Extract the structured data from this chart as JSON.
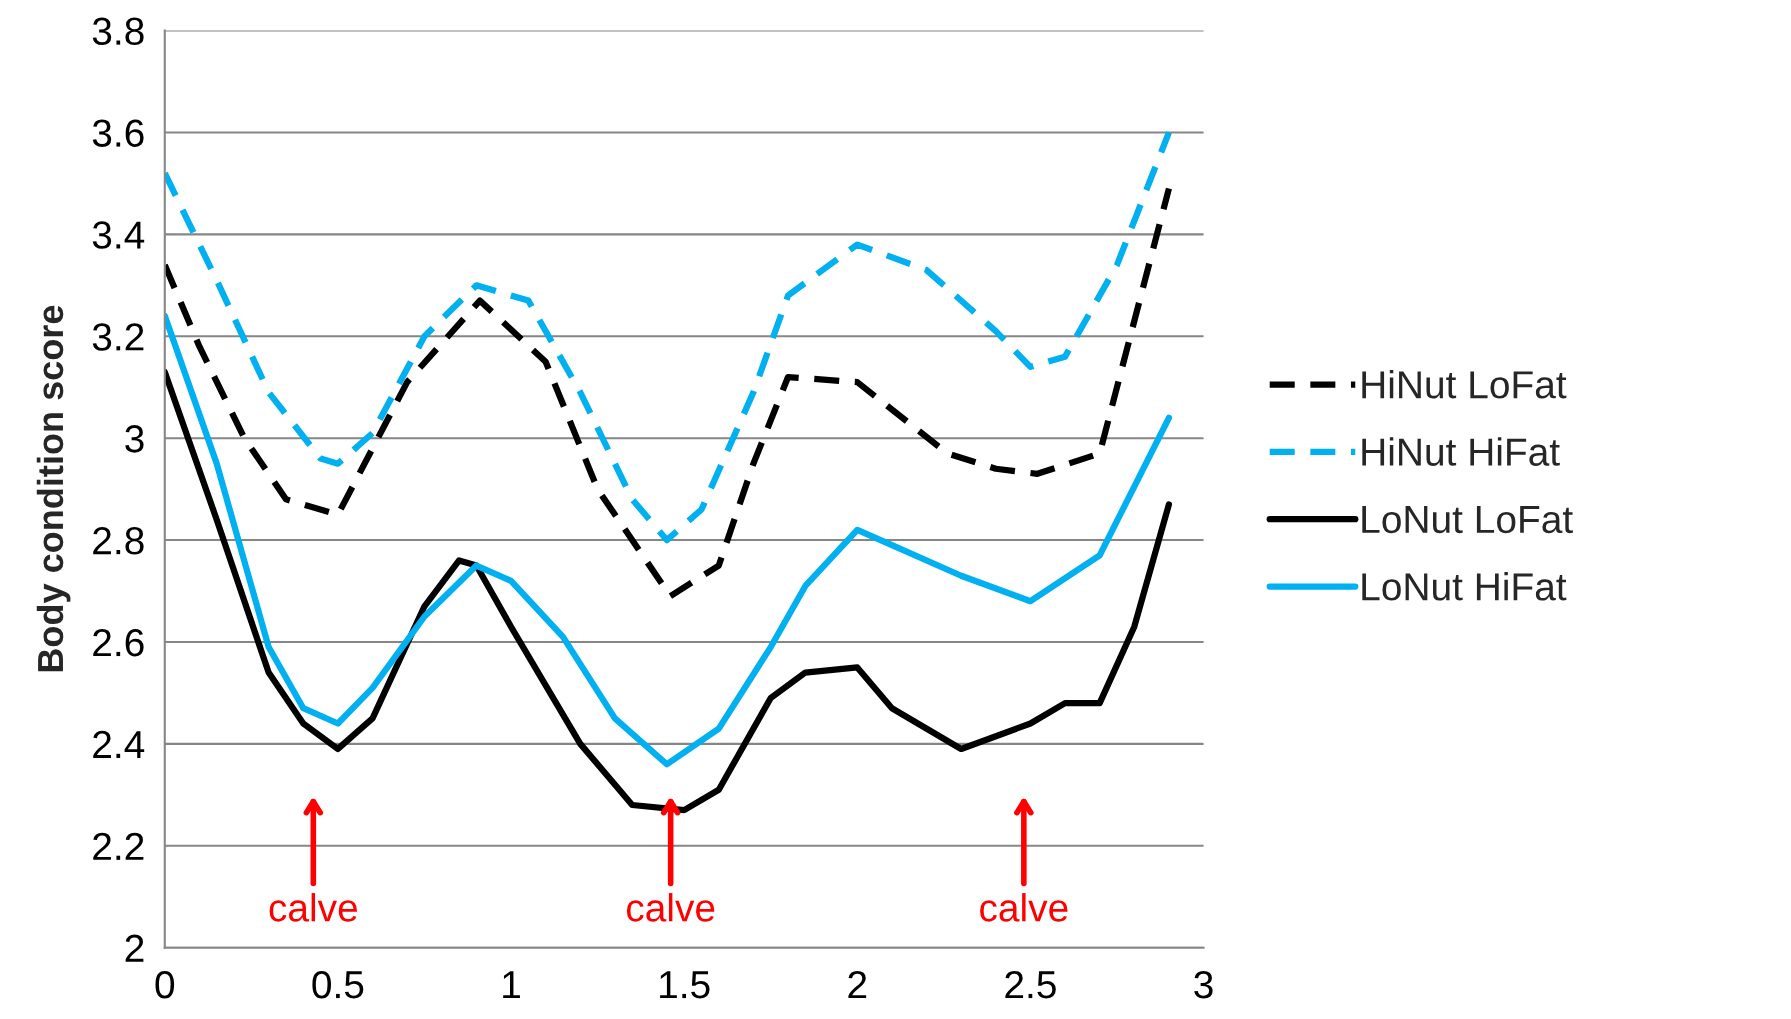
{
  "chart_data": {
    "type": "line",
    "ylabel": "Body condition score",
    "xlim": [
      0,
      3
    ],
    "xticks": [
      0,
      0.5,
      1,
      1.5,
      2,
      2.5,
      3
    ],
    "ylim": [
      2,
      3.8
    ],
    "yticks": [
      2,
      2.2,
      2.4,
      2.6,
      2.8,
      3,
      3.2,
      3.4,
      3.6,
      3.8
    ],
    "grid": "y",
    "legend": "right",
    "series": [
      {
        "name": "HiNut LoFat",
        "color": "#000000",
        "line_style": "dashed",
        "x": [
          0,
          0.1,
          0.23,
          0.35,
          0.5,
          0.7,
          0.91,
          1.1,
          1.25,
          1.46,
          1.6,
          1.7,
          1.8,
          2.0,
          2.26,
          2.4,
          2.52,
          2.7,
          2.9
        ],
        "values": [
          3.34,
          3.18,
          3.0,
          2.88,
          2.85,
          3.11,
          3.27,
          3.15,
          2.9,
          2.69,
          2.75,
          2.95,
          3.12,
          3.11,
          2.97,
          2.94,
          2.93,
          2.97,
          3.49
        ]
      },
      {
        "name": "HiNut HiFat",
        "color": "#00b0f0",
        "line_style": "dashed",
        "x": [
          0,
          0.15,
          0.3,
          0.45,
          0.5,
          0.6,
          0.75,
          0.9,
          1.05,
          1.2,
          1.35,
          1.45,
          1.55,
          1.7,
          1.8,
          2.0,
          2.2,
          2.4,
          2.5,
          2.6,
          2.75,
          2.9
        ],
        "values": [
          3.52,
          3.31,
          3.09,
          2.96,
          2.95,
          3.01,
          3.2,
          3.3,
          3.27,
          3.09,
          2.88,
          2.8,
          2.86,
          3.09,
          3.28,
          3.38,
          3.33,
          3.21,
          3.14,
          3.16,
          3.34,
          3.6
        ]
      },
      {
        "name": "LoNut LoFat",
        "color": "#000000",
        "line_style": "solid",
        "x": [
          0,
          0.15,
          0.3,
          0.4,
          0.5,
          0.6,
          0.75,
          0.85,
          0.9,
          1.0,
          1.2,
          1.35,
          1.5,
          1.6,
          1.75,
          1.85,
          2.0,
          2.1,
          2.3,
          2.5,
          2.6,
          2.7,
          2.8,
          2.9
        ],
        "values": [
          3.13,
          2.84,
          2.54,
          2.44,
          2.39,
          2.45,
          2.67,
          2.76,
          2.75,
          2.63,
          2.4,
          2.28,
          2.27,
          2.31,
          2.49,
          2.54,
          2.55,
          2.47,
          2.39,
          2.44,
          2.48,
          2.48,
          2.63,
          2.87
        ]
      },
      {
        "name": "LoNut HiFat",
        "color": "#00b0f0",
        "line_style": "solid",
        "x": [
          0,
          0.15,
          0.3,
          0.4,
          0.5,
          0.6,
          0.75,
          0.9,
          1.0,
          1.15,
          1.3,
          1.45,
          1.6,
          1.75,
          1.85,
          2.0,
          2.1,
          2.3,
          2.5,
          2.7,
          2.9
        ],
        "values": [
          3.24,
          2.95,
          2.59,
          2.47,
          2.44,
          2.51,
          2.65,
          2.75,
          2.72,
          2.61,
          2.45,
          2.36,
          2.43,
          2.59,
          2.71,
          2.82,
          2.79,
          2.73,
          2.68,
          2.77,
          3.04
        ]
      }
    ],
    "annotations": [
      "calve",
      "calve",
      "calve"
    ]
  }
}
